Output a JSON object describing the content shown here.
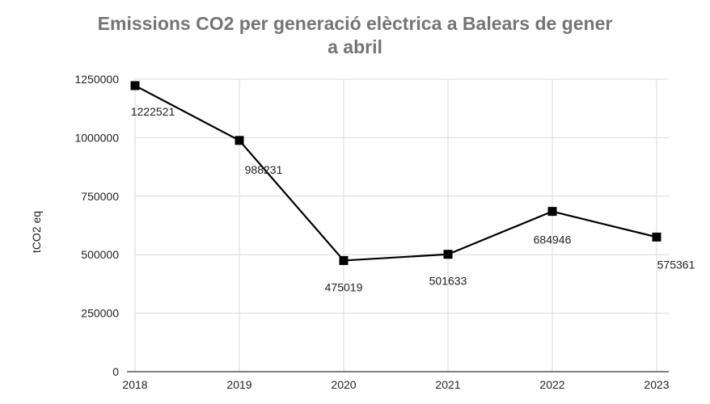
{
  "chart_data": {
    "type": "line",
    "title_lines": [
      "Emissions CO2 per generació elèctrica a Balears de gener",
      "a abril"
    ],
    "xlabel": "",
    "ylabel": "tCO2 eq",
    "categories": [
      "2018",
      "2019",
      "2020",
      "2021",
      "2022",
      "2023"
    ],
    "series": [
      {
        "values": [
          1222521,
          988231,
          475019,
          501633,
          684946,
          575361
        ],
        "labels": [
          "1222521",
          "988231",
          "475019",
          "501633",
          "684946",
          "575361"
        ],
        "color": "#000000",
        "marker": "square"
      }
    ],
    "ylim": [
      0,
      1250000
    ],
    "yticks": [
      "0",
      "250000",
      "500000",
      "750000",
      "1000000",
      "1250000"
    ],
    "grid": true,
    "legend": "none"
  }
}
